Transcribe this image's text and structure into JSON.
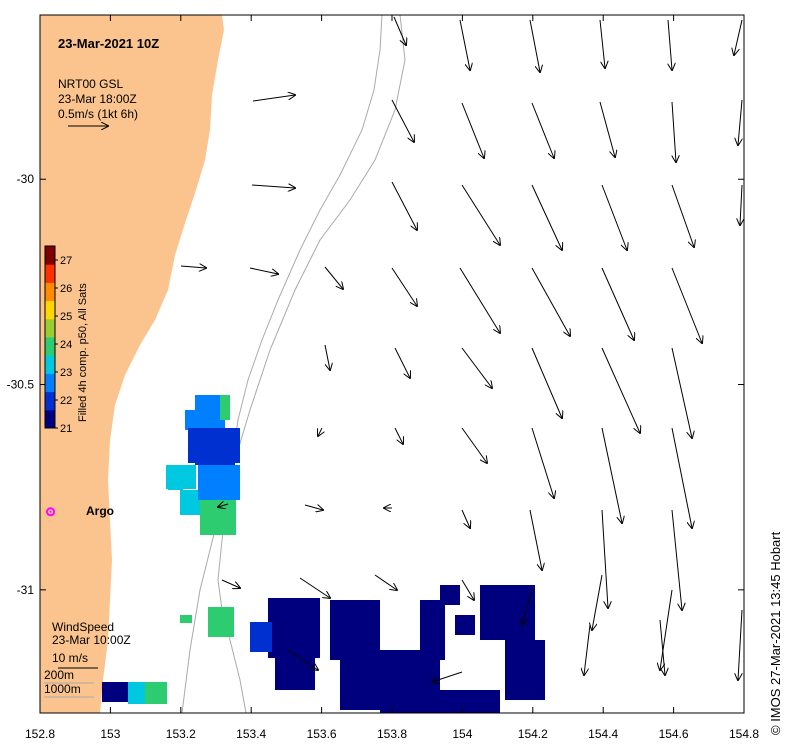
{
  "header": {
    "title": "23-Mar-2021 10Z",
    "current_product": "NRT00 GSL",
    "current_time": "23-Mar 18:00Z",
    "current_scale": "0.5m/s (1kt 6h)"
  },
  "colorbar": {
    "label": "Filled 4h comp. p50, All Sats",
    "ticks": [
      "21",
      "22",
      "23",
      "24",
      "25",
      "26",
      "27"
    ],
    "min": 21,
    "max": 27.5,
    "colors": [
      "#00007f",
      "#0030d0",
      "#0080ff",
      "#00c8e0",
      "#2ecc71",
      "#9acd32",
      "#ffd700",
      "#ff8c00",
      "#ff3000",
      "#7f0000"
    ]
  },
  "axes": {
    "lon_ticks": [
      "152.8",
      "153",
      "153.2",
      "153.4",
      "153.6",
      "153.8",
      "154",
      "154.2",
      "154.4",
      "154.6",
      "154.8"
    ],
    "lat_ticks": [
      "-30",
      "-30.5",
      "-31"
    ],
    "lon_range": [
      152.8,
      154.8
    ],
    "lat_range": [
      -29.6,
      -31.3
    ]
  },
  "argo": {
    "label": "Argo",
    "lon": 152.83,
    "lat": -30.81,
    "color": "#ff00ff"
  },
  "legend": {
    "wind_title": "WindSpeed",
    "wind_time": "23-Mar 10:00Z",
    "wind_scale": "10 m/s",
    "depth_200": "200m",
    "depth_1000": "1000m"
  },
  "credit": "© IMOS 27-Mar-2021 13:45 Hobart",
  "colors": {
    "land": "#fbc48f",
    "ocean": "#ffffff",
    "isobath": "#aaaaaa",
    "sst_cold": "#00007f"
  }
}
